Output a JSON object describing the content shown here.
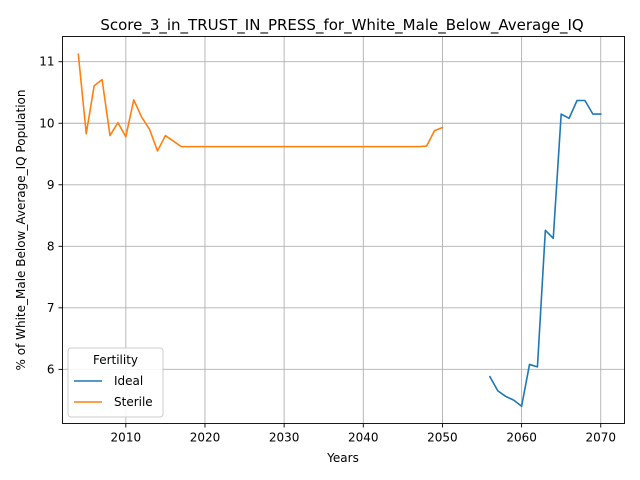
{
  "chart_data": {
    "type": "line",
    "title": "Score_3_in_TRUST_IN_PRESS_for_White_Male_Below_Average_IQ",
    "xlabel": "Years",
    "ylabel": "% of White_Male Below_Average_IQ Population",
    "xlim": [
      2002,
      2073
    ],
    "ylim": [
      5.12,
      11.41
    ],
    "xticks": [
      2010,
      2020,
      2030,
      2040,
      2050,
      2060,
      2070
    ],
    "yticks": [
      6,
      7,
      8,
      9,
      10,
      11
    ],
    "grid": true,
    "legend": {
      "title": "Fertility",
      "placement": "lower-left"
    },
    "series": [
      {
        "name": "Ideal",
        "color": "#1f77b4",
        "x": [
          2056,
          2057,
          2058,
          2059,
          2060,
          2061,
          2062,
          2063,
          2064,
          2065,
          2066,
          2067,
          2068,
          2069,
          2070
        ],
        "y": [
          5.88,
          5.65,
          5.56,
          5.5,
          5.4,
          6.08,
          6.04,
          8.26,
          8.13,
          10.15,
          10.08,
          10.37,
          10.37,
          10.15,
          10.15
        ]
      },
      {
        "name": "Sterile",
        "color": "#ff7f0e",
        "x": [
          2004,
          2005,
          2006,
          2007,
          2008,
          2009,
          2010,
          2011,
          2012,
          2013,
          2014,
          2015,
          2016,
          2017,
          2018,
          2019,
          2020,
          2021,
          2022,
          2023,
          2024,
          2025,
          2026,
          2027,
          2028,
          2029,
          2030,
          2031,
          2032,
          2033,
          2034,
          2035,
          2036,
          2037,
          2038,
          2039,
          2040,
          2041,
          2042,
          2043,
          2044,
          2045,
          2046,
          2047,
          2048,
          2049,
          2050
        ],
        "y": [
          11.12,
          9.83,
          10.61,
          10.71,
          9.8,
          10.01,
          9.78,
          10.38,
          10.1,
          9.9,
          9.55,
          9.8,
          9.71,
          9.62,
          9.62,
          9.62,
          9.62,
          9.62,
          9.62,
          9.62,
          9.62,
          9.62,
          9.62,
          9.62,
          9.62,
          9.62,
          9.62,
          9.62,
          9.62,
          9.62,
          9.62,
          9.62,
          9.62,
          9.62,
          9.62,
          9.62,
          9.62,
          9.62,
          9.62,
          9.62,
          9.62,
          9.62,
          9.62,
          9.62,
          9.63,
          9.88,
          9.93
        ]
      }
    ]
  }
}
